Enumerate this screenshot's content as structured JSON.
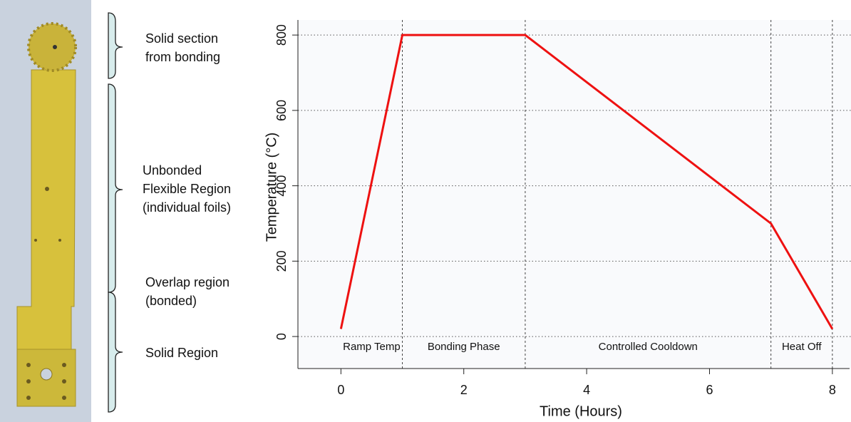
{
  "photo": {
    "labels": [
      {
        "lines": [
          "Solid section",
          "from bonding"
        ]
      },
      {
        "lines": [
          "Unbonded",
          "Flexible Region",
          "(individual foils)"
        ]
      },
      {
        "lines": [
          "Overlap region",
          "(bonded)"
        ]
      },
      {
        "lines": [
          "Solid Region"
        ]
      }
    ]
  },
  "chart_data": {
    "type": "line",
    "x": [
      0,
      1,
      3,
      7,
      8
    ],
    "values": [
      20,
      800,
      800,
      300,
      20
    ],
    "color": "#ee1111",
    "xlabel": "Time (Hours)",
    "ylabel": "Temperature (°C)",
    "xlim": [
      -0.7,
      8.28
    ],
    "ylim": [
      -85,
      840
    ],
    "xticks": [
      0,
      2,
      4,
      6,
      8
    ],
    "yticks": [
      0,
      200,
      400,
      600,
      800
    ],
    "grid": true,
    "phases": [
      {
        "label": "Ramp Temp",
        "start": 0,
        "end": 1
      },
      {
        "label": "Bonding Phase",
        "start": 1,
        "end": 3
      },
      {
        "label": "Controlled Cooldown",
        "start": 3,
        "end": 7
      },
      {
        "label": "Heat Off",
        "start": 7,
        "end": 8
      }
    ]
  }
}
